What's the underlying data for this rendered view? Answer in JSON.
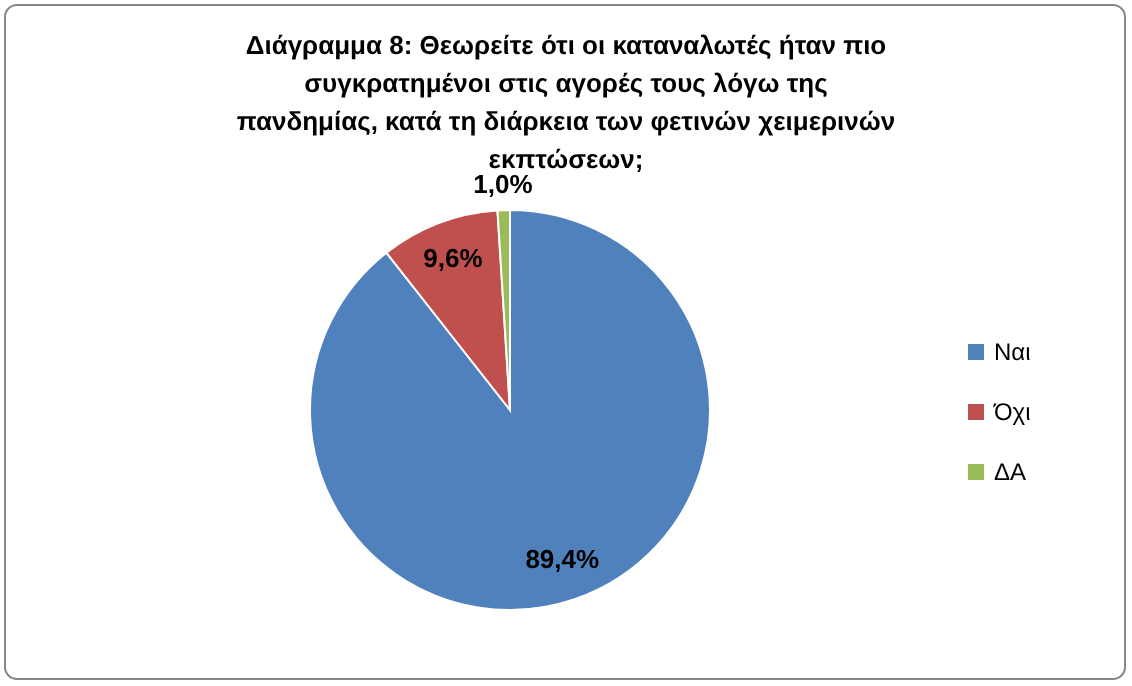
{
  "chart_data": {
    "type": "pie",
    "title": "Διάγραμμα 8: Θεωρείτε ότι οι καταναλωτές ήταν πιο συγκρατημένοι στις αγορές τους λόγω της πανδημίας, κατά τη διάρκεια των φετινών χειμερινών εκπτώσεων;",
    "categories": [
      "Ναι",
      "Όχι",
      "ΔΑ"
    ],
    "values": [
      89.4,
      9.6,
      1.0
    ],
    "value_labels": [
      "89,4%",
      "9,6%",
      "1,0%"
    ],
    "colors": [
      "#4f81bd",
      "#c0504d",
      "#9bbb59"
    ],
    "legend": "right"
  }
}
